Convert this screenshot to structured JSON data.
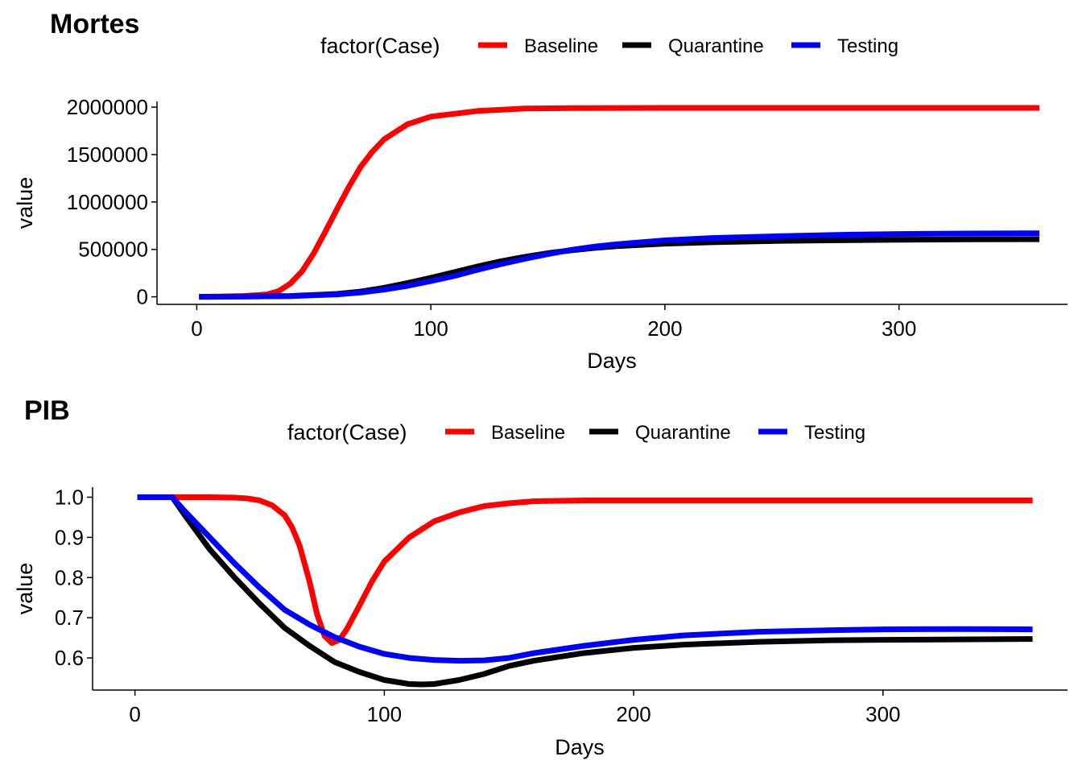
{
  "colors": {
    "Baseline": "#FF0000",
    "Quarantine": "#000000",
    "Testing": "#0000FF"
  },
  "chart_data": [
    {
      "type": "line",
      "title": "Mortes",
      "xlabel": "Days",
      "ylabel": "value",
      "legend_title": "factor(Case)",
      "legend_position": "top",
      "grid": false,
      "xlim": [
        -17,
        372
      ],
      "ylim": [
        -80000,
        2060000
      ],
      "xticks": [
        0,
        100,
        200,
        300
      ],
      "yticks": [
        0,
        500000,
        1000000,
        1500000,
        2000000
      ],
      "series": [
        {
          "name": "Baseline",
          "x": [
            1,
            10,
            20,
            30,
            35,
            40,
            45,
            50,
            55,
            60,
            65,
            70,
            75,
            80,
            90,
            100,
            120,
            140,
            160,
            200,
            250,
            300,
            360
          ],
          "y": [
            0,
            3000,
            8000,
            25000,
            60000,
            140000,
            270000,
            460000,
            690000,
            930000,
            1160000,
            1370000,
            1530000,
            1660000,
            1820000,
            1900000,
            1960000,
            1985000,
            1990000,
            1992000,
            1992000,
            1992000,
            1992000
          ]
        },
        {
          "name": "Quarantine",
          "x": [
            1,
            20,
            40,
            60,
            70,
            80,
            90,
            100,
            110,
            120,
            130,
            140,
            150,
            160,
            170,
            180,
            200,
            220,
            250,
            280,
            300,
            330,
            360
          ],
          "y": [
            0,
            2000,
            8000,
            30000,
            55000,
            95000,
            145000,
            200000,
            260000,
            320000,
            375000,
            420000,
            460000,
            490000,
            515000,
            535000,
            560000,
            575000,
            590000,
            598000,
            602000,
            605000,
            607000
          ]
        },
        {
          "name": "Testing",
          "x": [
            1,
            20,
            40,
            60,
            70,
            80,
            90,
            100,
            110,
            120,
            130,
            140,
            150,
            160,
            170,
            180,
            200,
            220,
            250,
            280,
            300,
            330,
            360
          ],
          "y": [
            0,
            2000,
            7000,
            25000,
            45000,
            75000,
            115000,
            165000,
            220000,
            285000,
            345000,
            400000,
            450000,
            495000,
            530000,
            555000,
            595000,
            620000,
            640000,
            655000,
            662000,
            667000,
            670000
          ]
        }
      ]
    },
    {
      "type": "line",
      "title": "PIB",
      "xlabel": "Days",
      "ylabel": "value",
      "legend_title": "factor(Case)",
      "legend_position": "top",
      "grid": false,
      "xlim": [
        -17,
        374
      ],
      "ylim": [
        0.52,
        1.025
      ],
      "xticks": [
        0,
        100,
        200,
        300
      ],
      "yticks": [
        0.6,
        0.7,
        0.8,
        0.9,
        1.0
      ],
      "ytick_labels": [
        "0.6",
        "0.7",
        "0.8",
        "0.9",
        "1.0"
      ],
      "series": [
        {
          "name": "Baseline",
          "x": [
            1,
            15,
            30,
            40,
            45,
            50,
            55,
            60,
            63,
            66,
            70,
            73,
            76,
            79,
            82,
            85,
            90,
            95,
            100,
            110,
            120,
            130,
            140,
            150,
            160,
            180,
            200,
            250,
            300,
            360
          ],
          "y": [
            1.0,
            1.0,
            1.0,
            0.999,
            0.997,
            0.992,
            0.98,
            0.955,
            0.925,
            0.88,
            0.79,
            0.71,
            0.655,
            0.637,
            0.645,
            0.672,
            0.73,
            0.79,
            0.84,
            0.9,
            0.94,
            0.962,
            0.978,
            0.985,
            0.99,
            0.992,
            0.992,
            0.992,
            0.992,
            0.992
          ]
        },
        {
          "name": "Quarantine",
          "x": [
            1,
            15,
            20,
            30,
            40,
            50,
            60,
            70,
            80,
            90,
            100,
            110,
            115,
            120,
            130,
            140,
            150,
            160,
            180,
            200,
            220,
            250,
            280,
            300,
            330,
            360
          ],
          "y": [
            1.0,
            1.0,
            0.955,
            0.87,
            0.8,
            0.735,
            0.675,
            0.63,
            0.59,
            0.565,
            0.545,
            0.535,
            0.534,
            0.535,
            0.545,
            0.56,
            0.58,
            0.593,
            0.612,
            0.625,
            0.633,
            0.64,
            0.644,
            0.645,
            0.646,
            0.647
          ]
        },
        {
          "name": "Testing",
          "x": [
            1,
            15,
            20,
            30,
            40,
            50,
            60,
            70,
            80,
            90,
            100,
            110,
            120,
            130,
            140,
            150,
            160,
            180,
            200,
            220,
            250,
            280,
            300,
            330,
            360
          ],
          "y": [
            1.0,
            1.0,
            0.965,
            0.9,
            0.835,
            0.775,
            0.72,
            0.683,
            0.652,
            0.628,
            0.61,
            0.6,
            0.595,
            0.593,
            0.594,
            0.6,
            0.612,
            0.63,
            0.645,
            0.656,
            0.665,
            0.669,
            0.671,
            0.672,
            0.671
          ]
        }
      ]
    }
  ]
}
